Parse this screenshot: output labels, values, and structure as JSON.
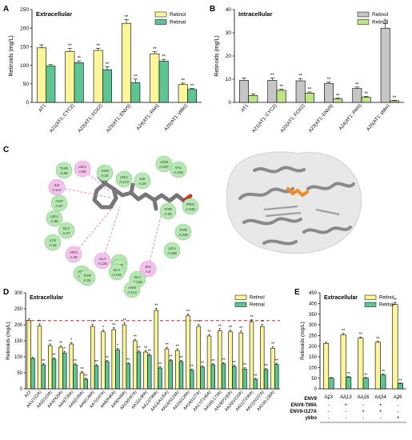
{
  "panels": {
    "A": {
      "letter": "A"
    },
    "B": {
      "letter": "B"
    },
    "C": {
      "letter": "C"
    },
    "D": {
      "letter": "D"
    },
    "E": {
      "letter": "E"
    }
  },
  "panel_c": {
    "residues": [
      "THR\nA:99",
      "LEU\nA:98",
      "ILE\nA:127",
      "ASP\nA:97",
      "LEU\nA:96",
      "GLY\nA:47",
      "LYS\nA:46",
      "ARG\nA:48",
      "ASN\nA:49",
      "ALA\nA:125",
      "THR\nA:22",
      "GLY\nA:23",
      "THR\nA:145",
      "ASN\nA:25",
      "LEU\nA:173",
      "ILE\nA:26",
      "ASN\nA:237",
      "VAL\nA:233",
      "PRO\nA:230",
      "THR\nA:26",
      "THR\nA:236",
      "LEU\nA:238",
      "GLY\nA:126",
      "GLY\nA:128",
      "ASN\nA:124",
      "ZIN\nA:0"
    ]
  },
  "chart_data": [
    {
      "panel": "A",
      "type": "bar",
      "title": "Extracellular",
      "ylabel": "Retinoids (mg/L)",
      "ylim": [
        0,
        250
      ],
      "yticks": [
        0,
        50,
        100,
        150,
        200,
        250
      ],
      "categories": [
        "AT1",
        "A21(AT1::CYC2)",
        "A22(AT1::FOX2)",
        "A23(AT1::ENV9)",
        "A24(AT1::PAH)",
        "A25(AT1::ybbo)"
      ],
      "series": [
        {
          "name": "Retinol",
          "color": "#fdf59a",
          "values": [
            147,
            137,
            140,
            213,
            131,
            48
          ],
          "errors": [
            8,
            8,
            6,
            10,
            6,
            4
          ],
          "marks": [
            "",
            "**",
            "**",
            "**",
            "**",
            "**"
          ]
        },
        {
          "name": "Retinal",
          "color": "#5cc593",
          "values": [
            98,
            107,
            88,
            53,
            111,
            35
          ],
          "errors": [
            4,
            5,
            8,
            10,
            5,
            3
          ],
          "marks": [
            "",
            "**",
            "**",
            "**",
            "**",
            "**"
          ]
        }
      ],
      "legend": "top-right"
    },
    {
      "panel": "B",
      "type": "bar",
      "title": "Intracellular",
      "ylabel": "Retinoids (mg/L)",
      "ylim": [
        0,
        40
      ],
      "yticks": [
        0,
        10,
        20,
        30,
        40
      ],
      "categories": [
        "AT1",
        "A21(AT1::CYC2)",
        "A22(AT1::FOX2)",
        "A23(AT1::ENV9)",
        "A24(AT1::PAH)",
        "A25(AT1::ybbo)"
      ],
      "series": [
        {
          "name": "Retinol",
          "color": "#c6c6c6",
          "values": [
            9.5,
            9.5,
            9.3,
            8.2,
            6,
            32
          ],
          "errors": [
            1,
            1,
            1,
            0.6,
            0.6,
            2
          ],
          "marks": [
            "",
            "**",
            "**",
            "**",
            "**",
            "**"
          ]
        },
        {
          "name": "Retinal",
          "color": "#bde586",
          "values": [
            3,
            5.2,
            4,
            1.5,
            2.2,
            0.7
          ],
          "errors": [
            0.6,
            0.5,
            0.5,
            0.3,
            0.4,
            0.2
          ],
          "marks": [
            "",
            "**",
            "**",
            "**",
            "**",
            "**"
          ]
        }
      ],
      "legend": "top-right"
    },
    {
      "panel": "D",
      "type": "bar",
      "title": "Extracellular",
      "ylabel": "Retinoids (mg/L)",
      "ylim": [
        0,
        300
      ],
      "yticks": [
        0,
        50,
        100,
        150,
        200,
        250,
        300
      ],
      "reference_line": 213,
      "categories": [
        "A23",
        "AA1(Y22A)",
        "AA2(G23A)",
        "AA3(N25A)",
        "AA4(T26A)",
        "AA5(D28A)",
        "AA6(C46A)",
        "AA7(G47A)",
        "AA8(R48A)",
        "AA9(N49A)",
        "AA10(D97A)",
        "AA11(L98A)",
        "AA12(T99A)",
        "AA13(A125A)",
        "AA14(N124A)",
        "AA15(I126A)",
        "AA16(I127A)",
        "AA17(T145A)",
        "AA18(L173A)",
        "AA19(P230A)",
        "AA20(V233A)",
        "AA21(T236A)",
        "AA22(N237A)",
        "AA23(L238A)"
      ],
      "series": [
        {
          "name": "Retinol",
          "color": "#fdf59a",
          "values": [
            213,
            197,
            135,
            130,
            140,
            50,
            195,
            178,
            185,
            200,
            150,
            115,
            245,
            125,
            120,
            228,
            195,
            165,
            182,
            178,
            175,
            210,
            195,
            127
          ],
          "errors": [
            6,
            6,
            5,
            5,
            5,
            4,
            6,
            6,
            6,
            6,
            5,
            5,
            7,
            5,
            5,
            6,
            6,
            5,
            6,
            6,
            6,
            6,
            6,
            5
          ],
          "marks": [
            "",
            "**",
            "**",
            "**",
            "*",
            "**",
            "**",
            "*",
            "**",
            "**",
            "**",
            "**",
            "**",
            "**",
            "**",
            "**",
            "**",
            "**",
            "**",
            "**",
            "**",
            "**",
            "**",
            "**"
          ]
        },
        {
          "name": "Retinal",
          "color": "#5cc593",
          "values": [
            95,
            75,
            93,
            112,
            75,
            30,
            72,
            85,
            122,
            78,
            115,
            105,
            65,
            88,
            85,
            58,
            68,
            75,
            78,
            70,
            62,
            30,
            60,
            76
          ],
          "errors": [
            4,
            4,
            4,
            5,
            4,
            3,
            4,
            4,
            5,
            4,
            5,
            5,
            4,
            4,
            4,
            4,
            4,
            4,
            4,
            4,
            4,
            3,
            4,
            4
          ],
          "marks": [
            "",
            "**",
            "**",
            "*",
            "**",
            "**",
            "**",
            "**",
            "*",
            "**",
            "**",
            "**",
            "**",
            "**",
            "**",
            "**",
            "**",
            "**",
            "**",
            "**",
            "**",
            "**",
            "**",
            "**"
          ]
        }
      ],
      "legend": "top-right"
    },
    {
      "panel": "E",
      "type": "bar",
      "title": "Extracellular",
      "ylabel": "Retinoids (mg/L)",
      "ylim": [
        0,
        450
      ],
      "yticks": [
        0,
        50,
        100,
        150,
        200,
        250,
        300,
        350,
        400,
        450
      ],
      "categories": [
        "A23",
        "AA13",
        "AA16",
        "AA34",
        "A26"
      ],
      "series": [
        {
          "name": "Retinol",
          "color": "#fdf59a",
          "values": [
            213,
            253,
            237,
            218,
            395
          ],
          "errors": [
            5,
            7,
            6,
            5,
            10
          ],
          "marks": [
            "",
            "**",
            "**",
            "**",
            "**"
          ]
        },
        {
          "name": "Retinal",
          "color": "#5cc593",
          "values": [
            50,
            55,
            50,
            65,
            25
          ],
          "errors": [
            3,
            3,
            3,
            4,
            2
          ],
          "marks": [
            "",
            "**",
            "**",
            "**",
            "**"
          ]
        }
      ],
      "legend": "top-right",
      "genotype_table": {
        "rows": [
          {
            "label": "ENV9",
            "cells": [
              "+",
              "-",
              "-",
              "-",
              "+"
            ]
          },
          {
            "label": "ENV9-T99A",
            "cells": [
              "-",
              "+",
              "-",
              "+",
              "-"
            ]
          },
          {
            "label": "ENV9-I127A",
            "cells": [
              "-",
              "-",
              "+",
              "+",
              "-"
            ]
          },
          {
            "label": "ybbo",
            "cells": [
              "-",
              "-",
              "-",
              "-",
              "+"
            ]
          }
        ]
      }
    }
  ]
}
